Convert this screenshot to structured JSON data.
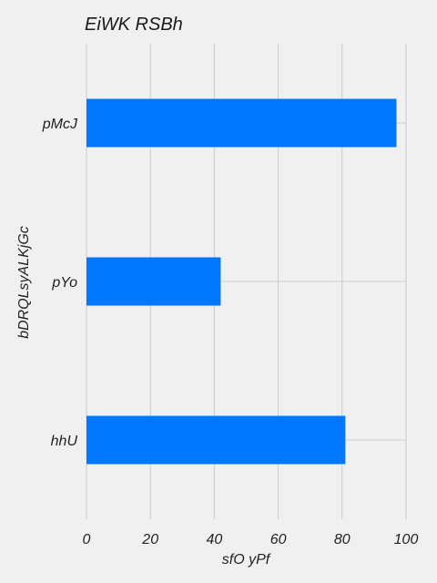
{
  "chart_data": {
    "type": "bar",
    "orientation": "horizontal",
    "title": "EiWK RSBh",
    "xlabel": "sfO yPf",
    "ylabel": "bDRQLsyALKjGc",
    "categories": [
      "pMcJ",
      "pYo",
      "hhU"
    ],
    "values": [
      97,
      42,
      81
    ],
    "xlim": [
      0,
      100
    ],
    "xticks": [
      0,
      20,
      40,
      60,
      80,
      100
    ],
    "grid": true,
    "bar_color": "#0077ff"
  }
}
